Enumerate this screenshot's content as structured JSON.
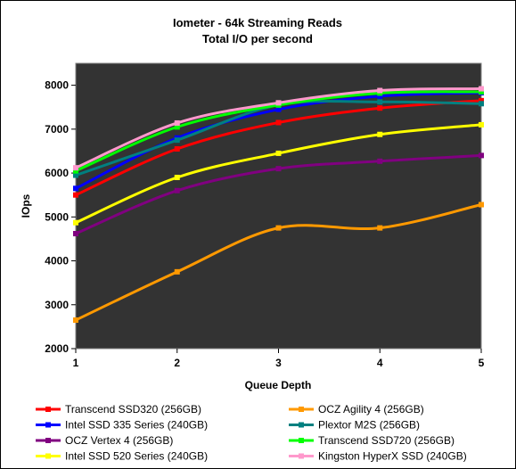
{
  "chart_data": {
    "type": "line",
    "title": "Iometer - 64k Streaming Reads",
    "subtitle": "Total I/O per second",
    "xlabel": "Queue Depth",
    "ylabel": "IOps",
    "x": [
      1,
      2,
      3,
      4,
      5
    ],
    "x_tick_labels": [
      "1",
      "2",
      "3",
      "4",
      "5"
    ],
    "ylim": [
      2000,
      8500
    ],
    "y_ticks": [
      2000,
      3000,
      4000,
      5000,
      6000,
      7000,
      8000
    ],
    "y_tick_labels": [
      "2000",
      "3000",
      "4000",
      "5000",
      "6000",
      "7000",
      "8000"
    ],
    "grid": false,
    "plot_background": "#333333",
    "legend_position": "bottom",
    "series": [
      {
        "name": "Transcend SSD320 (256GB)",
        "color": "#ff0000",
        "values": [
          5500,
          6550,
          7150,
          7480,
          7650
        ]
      },
      {
        "name": "OCZ Agility 4 (256GB)",
        "color": "#ff9900",
        "values": [
          2650,
          3750,
          4750,
          4750,
          5280
        ]
      },
      {
        "name": "Intel SSD 335 Series (240GB)",
        "color": "#0000ff",
        "values": [
          5650,
          6800,
          7450,
          7750,
          7830
        ]
      },
      {
        "name": "Plextor M2S (256GB)",
        "color": "#008080",
        "values": [
          5950,
          6750,
          7550,
          7620,
          7580
        ]
      },
      {
        "name": "OCZ Vertex 4 (256GB)",
        "color": "#800080",
        "values": [
          4620,
          5600,
          6100,
          6270,
          6400
        ]
      },
      {
        "name": "Transcend SSD720 (256GB)",
        "color": "#00ff00",
        "values": [
          6050,
          7050,
          7550,
          7820,
          7850
        ]
      },
      {
        "name": "Intel SSD 520 Series (240GB)",
        "color": "#ffff00",
        "values": [
          4870,
          5900,
          6450,
          6880,
          7100
        ]
      },
      {
        "name": "Kingston HyperX SSD (240GB)",
        "color": "#ff99cc",
        "values": [
          6120,
          7140,
          7600,
          7880,
          7920
        ]
      }
    ]
  }
}
